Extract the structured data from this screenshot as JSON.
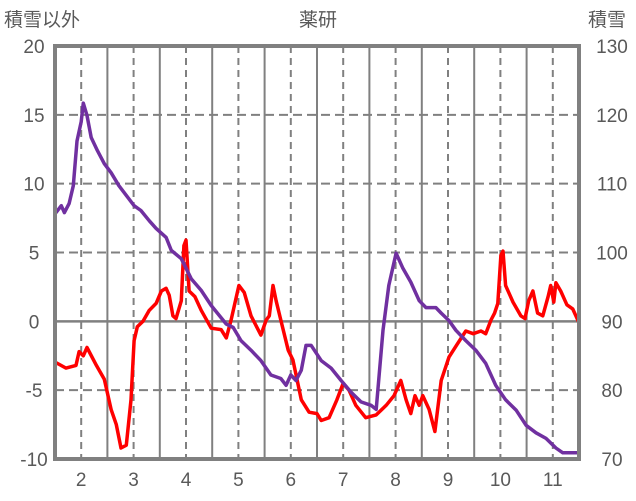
{
  "chart_data": {
    "type": "line",
    "title": "薬研",
    "ylabel_left": "積雪以外",
    "ylabel_right": "積雪",
    "xlabel": "",
    "xlim": [
      1.5,
      11.5
    ],
    "ylim_left": [
      -10,
      20
    ],
    "ylim_right": [
      70,
      130
    ],
    "x_ticks": [
      2,
      3,
      4,
      5,
      6,
      7,
      8,
      9,
      10,
      11
    ],
    "x_tick_labels": [
      "2",
      "3",
      "4",
      "5",
      "6",
      "7",
      "8",
      "9",
      "10",
      "11"
    ],
    "y_left_ticks": [
      20,
      15,
      10,
      5,
      0,
      -5,
      -10
    ],
    "y_left_tick_labels": [
      "20",
      "15",
      "10",
      "5",
      "0",
      "-5",
      "-10"
    ],
    "y_right_ticks": [
      130,
      120,
      110,
      100,
      90,
      80,
      70
    ],
    "y_right_tick_labels": [
      "130",
      "120",
      "110",
      "100",
      "90",
      "80",
      "70"
    ],
    "grid": true,
    "series": [
      {
        "name": "積雪以外",
        "axis": "left",
        "color": "#ff0000",
        "x": [
          1.52,
          1.71,
          1.9,
          1.96,
          2.04,
          2.11,
          2.29,
          2.44,
          2.57,
          2.67,
          2.76,
          2.86,
          2.95,
          3.01,
          3.07,
          3.18,
          3.3,
          3.43,
          3.53,
          3.62,
          3.68,
          3.75,
          3.81,
          3.91,
          3.96,
          4.0,
          4.06,
          4.17,
          4.29,
          4.48,
          4.67,
          4.77,
          4.86,
          5.01,
          5.11,
          5.24,
          5.43,
          5.53,
          5.59,
          5.66,
          5.72,
          5.81,
          5.95,
          6.04,
          6.2,
          6.35,
          6.5,
          6.58,
          6.73,
          6.88,
          7.0,
          7.11,
          7.24,
          7.43,
          7.63,
          7.82,
          7.97,
          8.1,
          8.2,
          8.29,
          8.37,
          8.45,
          8.52,
          8.64,
          8.75,
          8.87,
          9.02,
          9.17,
          9.34,
          9.48,
          9.63,
          9.72,
          9.82,
          9.89,
          9.95,
          10.01,
          10.05,
          10.1,
          10.24,
          10.39,
          10.47,
          10.54,
          10.62,
          10.71,
          10.81,
          10.91,
          10.96,
          11.02,
          11.06,
          11.15,
          11.27,
          11.38,
          11.5
        ],
        "values": [
          -3.0,
          -3.4,
          -3.2,
          -2.2,
          -2.5,
          -1.9,
          -3.2,
          -4.2,
          -6.4,
          -7.5,
          -9.2,
          -9.0,
          -5.7,
          -1.4,
          -0.4,
          0.0,
          0.8,
          1.3,
          2.2,
          2.4,
          1.9,
          0.4,
          0.2,
          1.5,
          5.5,
          5.9,
          2.2,
          1.8,
          0.8,
          -0.5,
          -0.6,
          -1.2,
          0.1,
          2.6,
          2.1,
          0.4,
          -1.0,
          0.1,
          0.4,
          2.6,
          1.5,
          0.1,
          -2.1,
          -2.8,
          -5.7,
          -6.6,
          -6.7,
          -7.2,
          -7.0,
          -5.7,
          -4.5,
          -5.0,
          -6.1,
          -7.0,
          -6.8,
          -6.1,
          -5.4,
          -4.3,
          -5.7,
          -6.7,
          -5.4,
          -6.1,
          -5.4,
          -6.4,
          -8.0,
          -4.3,
          -2.6,
          -1.7,
          -0.7,
          -0.9,
          -0.7,
          -0.9,
          0.1,
          0.6,
          1.3,
          4.8,
          5.1,
          2.6,
          1.4,
          0.4,
          0.2,
          1.5,
          2.2,
          0.6,
          0.4,
          1.8,
          2.6,
          1.4,
          2.8,
          2.2,
          1.2,
          0.9,
          -0.1
        ]
      },
      {
        "name": "積雪",
        "axis": "right",
        "color": "#7030a0",
        "x": [
          1.52,
          1.62,
          1.68,
          1.77,
          1.85,
          1.92,
          2.0,
          2.04,
          2.11,
          2.19,
          2.31,
          2.44,
          2.57,
          2.72,
          2.86,
          3.01,
          3.14,
          3.3,
          3.43,
          3.62,
          3.72,
          3.91,
          4.1,
          4.29,
          4.48,
          4.63,
          4.77,
          4.9,
          5.05,
          5.24,
          5.43,
          5.62,
          5.81,
          5.91,
          6.0,
          6.1,
          6.2,
          6.29,
          6.39,
          6.58,
          6.77,
          6.96,
          7.15,
          7.34,
          7.53,
          7.63,
          7.76,
          7.87,
          8.01,
          8.14,
          8.29,
          8.45,
          8.58,
          8.77,
          8.87,
          9.02,
          9.15,
          9.34,
          9.53,
          9.72,
          9.91,
          10.1,
          10.3,
          10.49,
          10.68,
          10.87,
          11.06,
          11.19,
          11.5
        ],
        "values": [
          105.8,
          106.8,
          105.8,
          107.1,
          109.7,
          116.2,
          119.0,
          121.7,
          119.9,
          116.7,
          114.8,
          112.9,
          111.6,
          109.7,
          108.3,
          106.8,
          106.1,
          104.6,
          103.5,
          102.2,
          100.3,
          99.1,
          96.2,
          94.5,
          92.3,
          90.9,
          89.6,
          89.1,
          87.2,
          85.8,
          84.3,
          82.2,
          81.7,
          80.7,
          82.2,
          81.4,
          82.9,
          86.5,
          86.5,
          84.3,
          83.2,
          81.4,
          79.7,
          78.3,
          77.8,
          77.2,
          88.7,
          95.2,
          99.9,
          97.7,
          95.7,
          93.0,
          92.0,
          92.0,
          91.2,
          90.1,
          88.7,
          87.2,
          85.8,
          83.9,
          80.7,
          78.6,
          77.1,
          74.9,
          73.8,
          73.0,
          71.6,
          70.9,
          70.9
        ]
      }
    ]
  }
}
